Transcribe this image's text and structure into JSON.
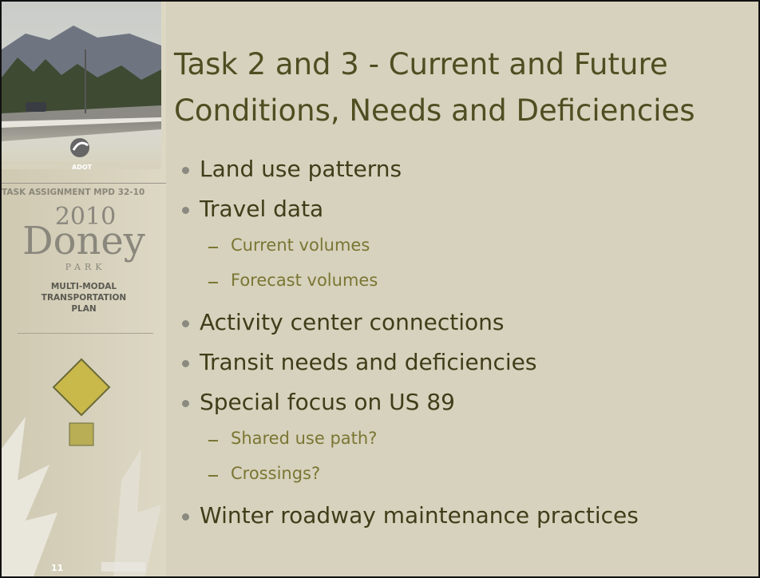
{
  "sidebar": {
    "logo": "ADOT",
    "task_assignment": "TASK ASSIGNMENT MPD 32-10",
    "year": "2010",
    "name": "Doney",
    "subname": "PARK",
    "plan": [
      "MULTI-MODAL",
      "TRANSPORTATION",
      "PLAN"
    ]
  },
  "title": [
    "Task 2 and 3 - Current and Future",
    "Conditions, Needs and Deficiencies"
  ],
  "bullets": [
    {
      "text": "Land use patterns"
    },
    {
      "text": "Travel data",
      "sub": [
        "Current volumes",
        "Forecast volumes"
      ]
    },
    {
      "text": "Activity center connections"
    },
    {
      "text": "Transit needs and deficiencies"
    },
    {
      "text": "Special focus on US 89",
      "sub": [
        "Shared use path?",
        "Crossings?"
      ]
    },
    {
      "text": "Winter roadway maintenance practices"
    }
  ],
  "page_number": "11"
}
